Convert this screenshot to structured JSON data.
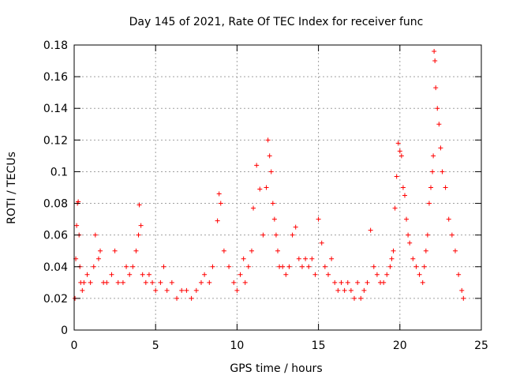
{
  "chart_data": {
    "type": "scatter",
    "title": "Day 145 of 2021, Rate Of TEC Index for receiver func",
    "xlabel": "GPS time / hours",
    "ylabel": "ROTI / TECUs",
    "xlim": [
      0,
      25
    ],
    "ylim": [
      0,
      0.18
    ],
    "xticks": [
      0,
      5,
      10,
      15,
      20,
      25
    ],
    "xtick_labels": [
      "0",
      "5",
      "10",
      "15",
      "20",
      "25"
    ],
    "yticks": [
      0,
      0.02,
      0.04,
      0.06,
      0.08,
      0.1,
      0.12,
      0.14,
      0.16,
      0.18
    ],
    "ytick_labels": [
      "0",
      "0.02",
      "0.04",
      "0.06",
      "0.08",
      "0.1",
      "0.12",
      "0.14",
      "0.16",
      "0.18"
    ],
    "grid": true,
    "marker": "plus",
    "series": [
      {
        "name": "ROTI",
        "color": "#ff0000",
        "x": [
          0.05,
          0.1,
          0.15,
          0.2,
          0.25,
          0.3,
          0.35,
          0.4,
          0.5,
          0.6,
          0.8,
          1.0,
          1.2,
          1.3,
          1.5,
          1.6,
          1.8,
          2.0,
          2.3,
          2.5,
          2.7,
          3.0,
          3.2,
          3.4,
          3.6,
          3.8,
          3.95,
          4.0,
          4.1,
          4.2,
          4.4,
          4.6,
          4.8,
          5.0,
          5.3,
          5.5,
          5.7,
          6.0,
          6.3,
          6.6,
          6.9,
          7.2,
          7.5,
          7.8,
          8.0,
          8.3,
          8.5,
          8.8,
          8.9,
          9.0,
          9.2,
          9.5,
          9.8,
          10.0,
          10.2,
          10.4,
          10.5,
          10.7,
          10.9,
          11.0,
          11.2,
          11.4,
          11.6,
          11.8,
          11.9,
          12.0,
          12.1,
          12.2,
          12.3,
          12.4,
          12.5,
          12.6,
          12.8,
          13.0,
          13.2,
          13.4,
          13.6,
          13.8,
          14.0,
          14.2,
          14.4,
          14.6,
          14.8,
          15.0,
          15.2,
          15.4,
          15.6,
          15.8,
          16.0,
          16.2,
          16.4,
          16.6,
          16.8,
          17.0,
          17.2,
          17.4,
          17.6,
          17.8,
          18.0,
          18.2,
          18.4,
          18.6,
          18.8,
          19.0,
          19.2,
          19.4,
          19.5,
          19.6,
          19.7,
          19.8,
          19.9,
          20.0,
          20.1,
          20.2,
          20.3,
          20.4,
          20.5,
          20.6,
          20.8,
          21.0,
          21.2,
          21.4,
          21.5,
          21.6,
          21.7,
          21.8,
          21.9,
          22.0,
          22.05,
          22.1,
          22.15,
          22.2,
          22.3,
          22.4,
          22.5,
          22.6,
          22.8,
          23.0,
          23.2,
          23.4,
          23.6,
          23.8,
          23.9
        ],
        "y": [
          0.02,
          0.045,
          0.066,
          0.08,
          0.081,
          0.06,
          0.04,
          0.03,
          0.025,
          0.03,
          0.035,
          0.03,
          0.04,
          0.06,
          0.045,
          0.05,
          0.03,
          0.03,
          0.035,
          0.05,
          0.03,
          0.03,
          0.04,
          0.035,
          0.04,
          0.05,
          0.06,
          0.079,
          0.066,
          0.035,
          0.03,
          0.035,
          0.03,
          0.025,
          0.03,
          0.04,
          0.025,
          0.03,
          0.02,
          0.025,
          0.025,
          0.02,
          0.025,
          0.03,
          0.035,
          0.03,
          0.04,
          0.069,
          0.086,
          0.08,
          0.05,
          0.04,
          0.03,
          0.025,
          0.035,
          0.045,
          0.03,
          0.04,
          0.05,
          0.077,
          0.104,
          0.089,
          0.06,
          0.09,
          0.12,
          0.11,
          0.1,
          0.08,
          0.07,
          0.06,
          0.05,
          0.04,
          0.04,
          0.035,
          0.04,
          0.06,
          0.065,
          0.045,
          0.04,
          0.045,
          0.04,
          0.045,
          0.035,
          0.07,
          0.055,
          0.04,
          0.035,
          0.045,
          0.03,
          0.025,
          0.03,
          0.025,
          0.03,
          0.025,
          0.02,
          0.03,
          0.02,
          0.025,
          0.03,
          0.063,
          0.04,
          0.035,
          0.03,
          0.03,
          0.035,
          0.04,
          0.045,
          0.05,
          0.077,
          0.097,
          0.118,
          0.113,
          0.11,
          0.09,
          0.085,
          0.07,
          0.06,
          0.055,
          0.045,
          0.04,
          0.035,
          0.03,
          0.04,
          0.05,
          0.06,
          0.08,
          0.09,
          0.1,
          0.11,
          0.176,
          0.17,
          0.153,
          0.14,
          0.13,
          0.115,
          0.1,
          0.09,
          0.07,
          0.06,
          0.05,
          0.035,
          0.025,
          0.02
        ]
      }
    ]
  }
}
